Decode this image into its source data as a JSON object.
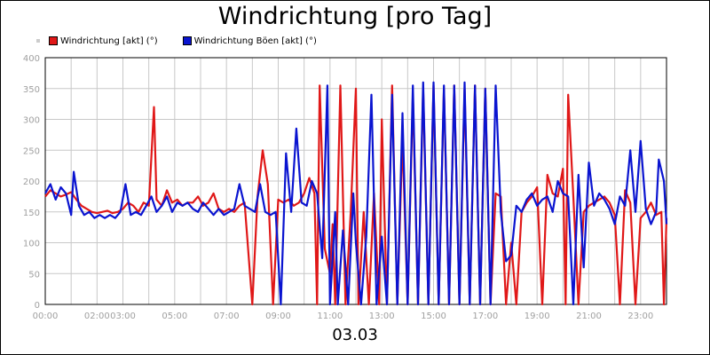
{
  "title": "Windrichtung [pro Tag]",
  "footer": "03.03",
  "colors": {
    "red": "#e01818",
    "blue": "#0a14d0",
    "grid": "#c8c8c8",
    "axis_text": "#a0a0a0"
  },
  "chart_data": {
    "type": "line",
    "title": "Windrichtung [pro Tag]",
    "xlabel": "03.03",
    "ylabel": "",
    "ylim": [
      0,
      400
    ],
    "xlim": [
      0,
      24
    ],
    "grid": true,
    "legend_position": "top-left",
    "y_ticks": [
      "0",
      "50",
      "100",
      "150",
      "200",
      "250",
      "300",
      "350",
      "400"
    ],
    "x_ticks": [
      {
        "x": 0,
        "label": "00:00"
      },
      {
        "x": 2,
        "label": "02:00"
      },
      {
        "x": 3,
        "label": "03:00"
      },
      {
        "x": 5,
        "label": "05:00"
      },
      {
        "x": 7,
        "label": "07:00"
      },
      {
        "x": 9,
        "label": "09:00"
      },
      {
        "x": 11,
        "label": "11:00"
      },
      {
        "x": 13,
        "label": "13:00"
      },
      {
        "x": 15,
        "label": "15:00"
      },
      {
        "x": 17,
        "label": "17:00"
      },
      {
        "x": 19,
        "label": "19:00"
      },
      {
        "x": 21,
        "label": "21:00"
      },
      {
        "x": 23,
        "label": "23:00"
      }
    ],
    "series": [
      {
        "name": "Windrichtung [akt] (°)",
        "color": "#e01818",
        "points": [
          [
            0.0,
            175
          ],
          [
            0.2,
            185
          ],
          [
            0.4,
            180
          ],
          [
            0.6,
            175
          ],
          [
            0.8,
            178
          ],
          [
            1.0,
            182
          ],
          [
            1.2,
            170
          ],
          [
            1.4,
            160
          ],
          [
            1.6,
            155
          ],
          [
            1.8,
            150
          ],
          [
            2.0,
            148
          ],
          [
            2.2,
            150
          ],
          [
            2.4,
            152
          ],
          [
            2.6,
            148
          ],
          [
            2.8,
            150
          ],
          [
            3.0,
            155
          ],
          [
            3.2,
            165
          ],
          [
            3.4,
            160
          ],
          [
            3.6,
            150
          ],
          [
            3.8,
            165
          ],
          [
            4.0,
            160
          ],
          [
            4.2,
            320
          ],
          [
            4.3,
            170
          ],
          [
            4.5,
            160
          ],
          [
            4.7,
            185
          ],
          [
            4.9,
            165
          ],
          [
            5.1,
            170
          ],
          [
            5.3,
            160
          ],
          [
            5.5,
            165
          ],
          [
            5.7,
            165
          ],
          [
            5.9,
            175
          ],
          [
            6.1,
            160
          ],
          [
            6.3,
            165
          ],
          [
            6.5,
            180
          ],
          [
            6.7,
            155
          ],
          [
            6.9,
            150
          ],
          [
            7.1,
            155
          ],
          [
            7.3,
            150
          ],
          [
            7.5,
            160
          ],
          [
            7.7,
            165
          ],
          [
            8.0,
            0
          ],
          [
            8.2,
            175
          ],
          [
            8.4,
            250
          ],
          [
            8.6,
            195
          ],
          [
            8.8,
            0
          ],
          [
            9.0,
            170
          ],
          [
            9.2,
            165
          ],
          [
            9.4,
            170
          ],
          [
            9.6,
            160
          ],
          [
            9.8,
            165
          ],
          [
            10.0,
            180
          ],
          [
            10.2,
            205
          ],
          [
            10.4,
            180
          ],
          [
            10.5,
            0
          ],
          [
            10.6,
            355
          ],
          [
            10.8,
            90
          ],
          [
            11.0,
            50
          ],
          [
            11.1,
            130
          ],
          [
            11.2,
            0
          ],
          [
            11.4,
            355
          ],
          [
            11.6,
            0
          ],
          [
            11.8,
            150
          ],
          [
            12.0,
            350
          ],
          [
            12.1,
            0
          ],
          [
            12.3,
            150
          ],
          [
            12.5,
            0
          ],
          [
            12.7,
            180
          ],
          [
            12.9,
            0
          ],
          [
            13.0,
            300
          ],
          [
            13.2,
            0
          ],
          [
            13.4,
            355
          ],
          [
            13.6,
            0
          ],
          [
            13.8,
            270
          ],
          [
            14.0,
            0
          ],
          [
            14.2,
            340
          ],
          [
            14.4,
            0
          ],
          [
            14.6,
            350
          ],
          [
            14.8,
            0
          ],
          [
            15.0,
            355
          ],
          [
            15.2,
            0
          ],
          [
            15.4,
            350
          ],
          [
            15.6,
            0
          ],
          [
            15.8,
            355
          ],
          [
            16.0,
            0
          ],
          [
            16.2,
            350
          ],
          [
            16.4,
            0
          ],
          [
            16.6,
            355
          ],
          [
            16.8,
            0
          ],
          [
            17.0,
            350
          ],
          [
            17.2,
            0
          ],
          [
            17.4,
            180
          ],
          [
            17.6,
            175
          ],
          [
            17.8,
            0
          ],
          [
            18.0,
            100
          ],
          [
            18.2,
            0
          ],
          [
            18.4,
            150
          ],
          [
            18.6,
            165
          ],
          [
            18.8,
            175
          ],
          [
            19.0,
            190
          ],
          [
            19.2,
            0
          ],
          [
            19.4,
            210
          ],
          [
            19.6,
            180
          ],
          [
            19.8,
            175
          ],
          [
            20.0,
            220
          ],
          [
            20.1,
            0
          ],
          [
            20.2,
            340
          ],
          [
            20.4,
            175
          ],
          [
            20.6,
            0
          ],
          [
            20.8,
            150
          ],
          [
            21.0,
            160
          ],
          [
            21.2,
            165
          ],
          [
            21.4,
            170
          ],
          [
            21.6,
            175
          ],
          [
            21.8,
            165
          ],
          [
            22.0,
            145
          ],
          [
            22.2,
            0
          ],
          [
            22.4,
            185
          ],
          [
            22.6,
            165
          ],
          [
            22.8,
            0
          ],
          [
            23.0,
            140
          ],
          [
            23.2,
            150
          ],
          [
            23.4,
            165
          ],
          [
            23.6,
            145
          ],
          [
            23.8,
            150
          ],
          [
            23.9,
            0
          ],
          [
            24.0,
            140
          ]
        ]
      },
      {
        "name": "Windrichtung Böen [akt] (°)",
        "color": "#0a14d0",
        "points": [
          [
            0.0,
            180
          ],
          [
            0.2,
            195
          ],
          [
            0.4,
            170
          ],
          [
            0.6,
            190
          ],
          [
            0.8,
            180
          ],
          [
            1.0,
            145
          ],
          [
            1.1,
            215
          ],
          [
            1.3,
            160
          ],
          [
            1.5,
            145
          ],
          [
            1.7,
            150
          ],
          [
            1.9,
            140
          ],
          [
            2.1,
            145
          ],
          [
            2.3,
            140
          ],
          [
            2.5,
            145
          ],
          [
            2.7,
            140
          ],
          [
            2.9,
            150
          ],
          [
            3.1,
            195
          ],
          [
            3.3,
            145
          ],
          [
            3.5,
            150
          ],
          [
            3.7,
            145
          ],
          [
            3.9,
            160
          ],
          [
            4.1,
            175
          ],
          [
            4.3,
            150
          ],
          [
            4.5,
            160
          ],
          [
            4.7,
            175
          ],
          [
            4.9,
            150
          ],
          [
            5.1,
            165
          ],
          [
            5.3,
            160
          ],
          [
            5.5,
            165
          ],
          [
            5.7,
            155
          ],
          [
            5.9,
            150
          ],
          [
            6.1,
            165
          ],
          [
            6.3,
            155
          ],
          [
            6.5,
            145
          ],
          [
            6.7,
            155
          ],
          [
            6.9,
            145
          ],
          [
            7.1,
            150
          ],
          [
            7.3,
            155
          ],
          [
            7.5,
            195
          ],
          [
            7.7,
            160
          ],
          [
            7.9,
            155
          ],
          [
            8.1,
            150
          ],
          [
            8.3,
            195
          ],
          [
            8.5,
            150
          ],
          [
            8.7,
            145
          ],
          [
            8.9,
            150
          ],
          [
            9.1,
            0
          ],
          [
            9.3,
            245
          ],
          [
            9.5,
            150
          ],
          [
            9.7,
            285
          ],
          [
            9.9,
            165
          ],
          [
            10.1,
            160
          ],
          [
            10.3,
            200
          ],
          [
            10.5,
            180
          ],
          [
            10.7,
            75
          ],
          [
            10.9,
            355
          ],
          [
            11.0,
            0
          ],
          [
            11.2,
            150
          ],
          [
            11.3,
            0
          ],
          [
            11.5,
            120
          ],
          [
            11.7,
            0
          ],
          [
            11.9,
            180
          ],
          [
            12.0,
            100
          ],
          [
            12.2,
            0
          ],
          [
            12.4,
            110
          ],
          [
            12.6,
            340
          ],
          [
            12.8,
            0
          ],
          [
            13.0,
            110
          ],
          [
            13.2,
            0
          ],
          [
            13.4,
            340
          ],
          [
            13.6,
            0
          ],
          [
            13.8,
            310
          ],
          [
            14.0,
            0
          ],
          [
            14.2,
            355
          ],
          [
            14.4,
            0
          ],
          [
            14.6,
            360
          ],
          [
            14.8,
            0
          ],
          [
            15.0,
            360
          ],
          [
            15.2,
            0
          ],
          [
            15.4,
            355
          ],
          [
            15.6,
            0
          ],
          [
            15.8,
            355
          ],
          [
            16.0,
            0
          ],
          [
            16.2,
            360
          ],
          [
            16.4,
            0
          ],
          [
            16.6,
            355
          ],
          [
            16.8,
            0
          ],
          [
            17.0,
            350
          ],
          [
            17.2,
            0
          ],
          [
            17.4,
            355
          ],
          [
            17.6,
            150
          ],
          [
            17.8,
            70
          ],
          [
            18.0,
            80
          ],
          [
            18.2,
            160
          ],
          [
            18.4,
            150
          ],
          [
            18.6,
            170
          ],
          [
            18.8,
            180
          ],
          [
            19.0,
            160
          ],
          [
            19.2,
            170
          ],
          [
            19.4,
            175
          ],
          [
            19.6,
            150
          ],
          [
            19.8,
            200
          ],
          [
            20.0,
            180
          ],
          [
            20.2,
            175
          ],
          [
            20.4,
            0
          ],
          [
            20.6,
            210
          ],
          [
            20.8,
            60
          ],
          [
            21.0,
            230
          ],
          [
            21.2,
            160
          ],
          [
            21.4,
            180
          ],
          [
            21.6,
            170
          ],
          [
            21.8,
            155
          ],
          [
            22.0,
            130
          ],
          [
            22.2,
            175
          ],
          [
            22.4,
            160
          ],
          [
            22.6,
            250
          ],
          [
            22.8,
            150
          ],
          [
            23.0,
            265
          ],
          [
            23.2,
            155
          ],
          [
            23.4,
            130
          ],
          [
            23.6,
            150
          ],
          [
            23.7,
            235
          ],
          [
            23.9,
            200
          ],
          [
            24.0,
            130
          ]
        ]
      }
    ]
  }
}
